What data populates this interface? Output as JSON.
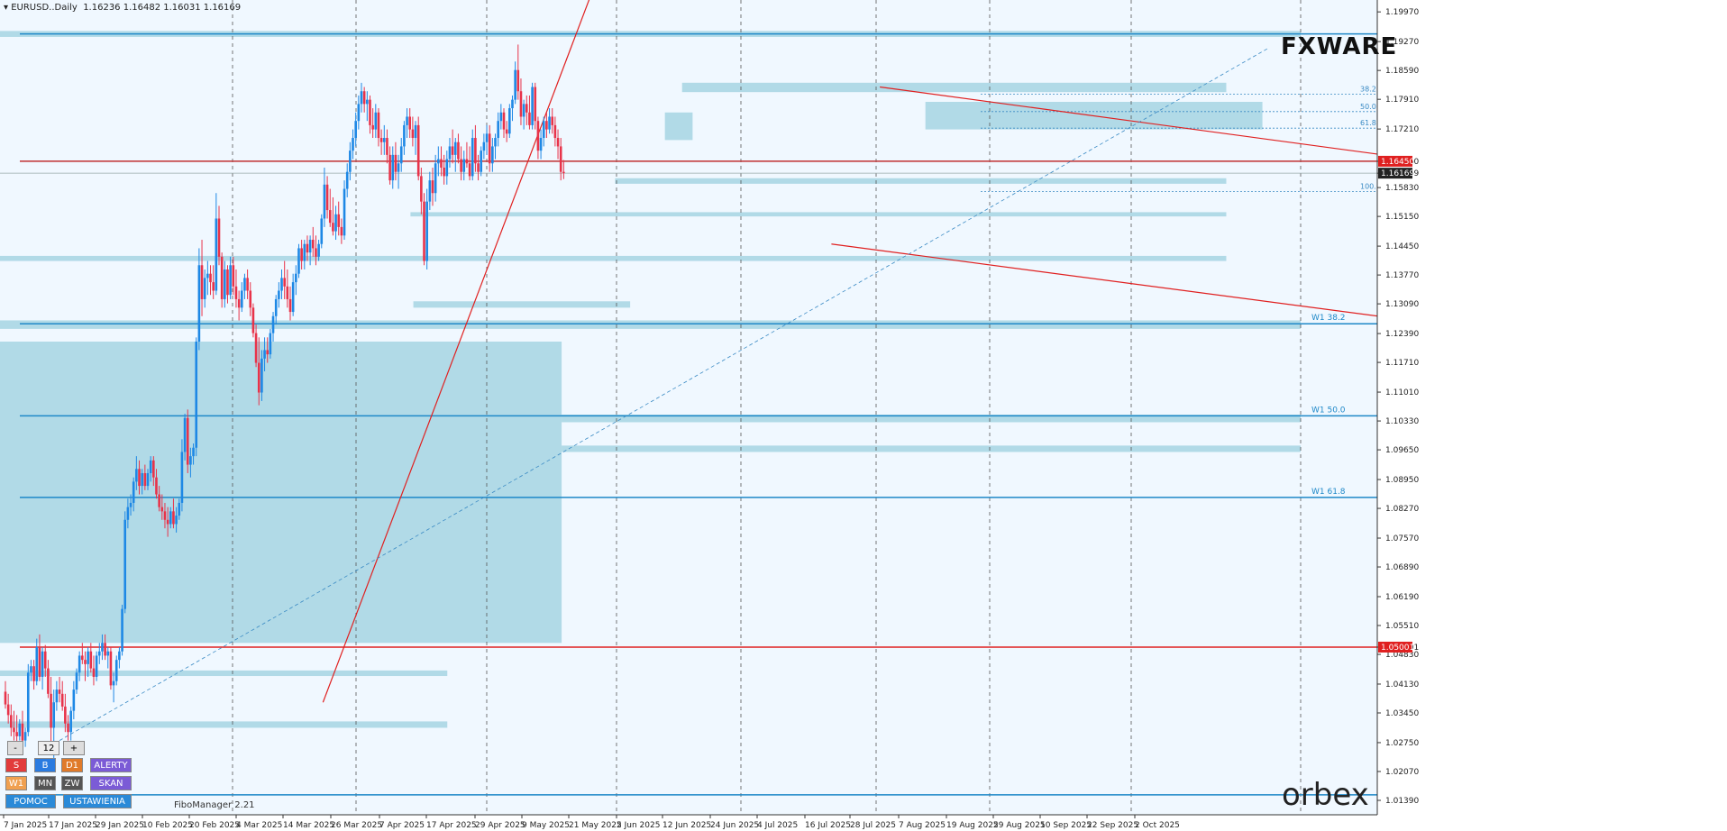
{
  "header": {
    "symbol": "EURUSD..Daily",
    "ohlc": "1.16236 1.16482 1.16031 1.16169"
  },
  "logos": {
    "top": "FXWARE",
    "bottom": "orbex"
  },
  "panel": {
    "minus": "-",
    "value": "12",
    "plus": "+",
    "row1": [
      "S",
      "B",
      "D1",
      "ALERTY"
    ],
    "row2": [
      "W1",
      "MN",
      "ZW",
      "SKAN"
    ],
    "row3": [
      "POMOC",
      "USTAWIENIA"
    ]
  },
  "footer": {
    "indicator": "FiboManager 2.21"
  },
  "colors": {
    "bg": "#f0f8ff",
    "bull": "#1e88e5",
    "bear": "#e8334a",
    "zone": "#add8e6",
    "trend": "#e02020",
    "level": "#1e88c8"
  },
  "chart_data": {
    "type": "candlestick",
    "ylim": [
      1.0105,
      1.2025
    ],
    "price_ticks": [
      "1.19970",
      "1.19270",
      "1.18590",
      "1.17910",
      "1.17210",
      "1.16450",
      "1.16169",
      "1.15830",
      "1.15150",
      "1.14450",
      "1.13770",
      "1.13090",
      "1.12390",
      "1.11710",
      "1.11010",
      "1.10330",
      "1.09650",
      "1.08950",
      "1.08270",
      "1.07570",
      "1.06890",
      "1.06190",
      "1.05510",
      "1.05001",
      "1.04830",
      "1.04130",
      "1.03450",
      "1.02750",
      "1.02070",
      "1.01390"
    ],
    "date_ticks": [
      "7 Jan 2025",
      "17 Jan 2025",
      "29 Jan 2025",
      "10 Feb 2025",
      "20 Feb 2025",
      "4 Mar 2025",
      "14 Mar 2025",
      "26 Mar 2025",
      "7 Apr 2025",
      "17 Apr 2025",
      "29 Apr 2025",
      "9 May 2025",
      "21 May 2025",
      "2 Jun 2025",
      "12 Jun 2025",
      "24 Jun 2025",
      "4 Jul 2025",
      "16 Jul 2025",
      "28 Jul 2025",
      "7 Aug 2025",
      "19 Aug 2025",
      "29 Aug 2025",
      "10 Sep 2025",
      "22 Sep 2025",
      "2 Oct 2025"
    ],
    "price_labels": [
      {
        "price": 1.1645,
        "text": "1.16450",
        "color": "#e02020"
      },
      {
        "price": 1.16169,
        "text": "1.16169",
        "color": "#222222"
      },
      {
        "price": 1.05001,
        "text": "1.05001",
        "color": "#e02020"
      }
    ],
    "hlines": [
      {
        "price": 1.1945,
        "color": "#1e88c8",
        "label": ""
      },
      {
        "price": 1.1262,
        "color": "#1e88c8",
        "label": "W1 38.2"
      },
      {
        "price": 1.1045,
        "color": "#1e88c8",
        "label": "W1 50.0"
      },
      {
        "price": 1.0853,
        "color": "#1e88c8",
        "label": "W1 61.8"
      },
      {
        "price": 1.0152,
        "color": "#1e88c8",
        "label": ""
      },
      {
        "price": 1.1645,
        "color": "#c03030",
        "label": ""
      },
      {
        "price": 1.05001,
        "color": "#e02020",
        "label": ""
      }
    ],
    "fib_levels": [
      {
        "price": 1.1803,
        "label": "38.2"
      },
      {
        "price": 1.1762,
        "label": "50.0"
      },
      {
        "price": 1.1723,
        "label": "61.8"
      },
      {
        "price": 1.1574,
        "label": "100.0"
      }
    ],
    "zones": [
      {
        "x0": 0.0,
        "x1": 1.0,
        "p0": 1.1952,
        "p1": 1.1938
      },
      {
        "x0": 0.0,
        "x1": 1.0,
        "p0": 1.127,
        "p1": 1.125
      },
      {
        "x0": 0.0,
        "x1": 0.4318,
        "p0": 1.122,
        "p1": 1.051
      },
      {
        "x0": 0.4318,
        "x1": 1.0,
        "p0": 1.1048,
        "p1": 1.103
      },
      {
        "x0": 0.4318,
        "x1": 1.0,
        "p0": 1.0975,
        "p1": 1.096
      },
      {
        "x0": 0.0,
        "x1": 0.3439,
        "p0": 1.0445,
        "p1": 1.0432
      },
      {
        "x0": 0.0,
        "x1": 0.3439,
        "p0": 1.0325,
        "p1": 1.031
      },
      {
        "x0": 0.5244,
        "x1": 0.9428,
        "p0": 1.183,
        "p1": 1.1808
      },
      {
        "x0": 0.5112,
        "x1": 0.5325,
        "p0": 1.176,
        "p1": 1.1695
      },
      {
        "x0": 0.7115,
        "x1": 0.9706,
        "p0": 1.1785,
        "p1": 1.172
      },
      {
        "x0": 0.4729,
        "x1": 0.9428,
        "p0": 1.1605,
        "p1": 1.1592
      },
      {
        "x0": 0.3156,
        "x1": 0.9428,
        "p0": 1.1525,
        "p1": 1.1515
      },
      {
        "x0": 0.0,
        "x1": 0.9428,
        "p0": 1.1422,
        "p1": 1.141
      },
      {
        "x0": 0.3178,
        "x1": 0.4845,
        "p0": 1.1315,
        "p1": 1.13
      }
    ],
    "candles": [
      [
        1.0395,
        1.042,
        1.0355,
        1.0365
      ],
      [
        1.0365,
        1.039,
        1.032,
        1.034
      ],
      [
        1.034,
        1.0365,
        1.029,
        1.031
      ],
      [
        1.031,
        1.035,
        1.028,
        1.03
      ],
      [
        1.03,
        1.034,
        1.027,
        1.029
      ],
      [
        1.029,
        1.033,
        1.028,
        1.032
      ],
      [
        1.032,
        1.035,
        1.027,
        1.028
      ],
      [
        1.028,
        1.031,
        1.0265,
        1.03
      ],
      [
        1.03,
        1.046,
        1.029,
        1.044
      ],
      [
        1.044,
        1.047,
        1.042,
        1.0455
      ],
      [
        1.0455,
        1.047,
        1.04,
        1.042
      ],
      [
        1.042,
        1.052,
        1.041,
        1.05
      ],
      [
        1.05,
        1.053,
        1.042,
        1.043
      ],
      [
        1.043,
        1.05,
        1.04,
        1.049
      ],
      [
        1.049,
        1.0505,
        1.043,
        1.045
      ],
      [
        1.045,
        1.047,
        1.038,
        1.039
      ],
      [
        1.039,
        1.043,
        1.025,
        1.031
      ],
      [
        1.031,
        1.04,
        1.023,
        1.037
      ],
      [
        1.037,
        1.042,
        1.035,
        1.04
      ],
      [
        1.04,
        1.043,
        1.037,
        1.039
      ],
      [
        1.039,
        1.042,
        1.035,
        1.036
      ],
      [
        1.036,
        1.039,
        1.03,
        1.032
      ],
      [
        1.032,
        1.034,
        1.028,
        1.03
      ],
      [
        1.03,
        1.036,
        1.028,
        1.035
      ],
      [
        1.035,
        1.042,
        1.033,
        1.04
      ],
      [
        1.04,
        1.045,
        1.039,
        1.044
      ],
      [
        1.044,
        1.049,
        1.042,
        1.048
      ],
      [
        1.048,
        1.051,
        1.046,
        1.047
      ],
      [
        1.047,
        1.049,
        1.042,
        1.046
      ],
      [
        1.046,
        1.05,
        1.043,
        1.049
      ],
      [
        1.049,
        1.051,
        1.044,
        1.045
      ],
      [
        1.045,
        1.048,
        1.041,
        1.043
      ],
      [
        1.043,
        1.049,
        1.042,
        1.048
      ],
      [
        1.048,
        1.051,
        1.046,
        1.049
      ],
      [
        1.049,
        1.053,
        1.047,
        1.051
      ],
      [
        1.051,
        1.053,
        1.047,
        1.048
      ],
      [
        1.048,
        1.05,
        1.045,
        1.049
      ],
      [
        1.049,
        1.05,
        1.04,
        1.041
      ],
      [
        1.041,
        1.044,
        1.037,
        1.042
      ],
      [
        1.042,
        1.048,
        1.041,
        1.047
      ],
      [
        1.047,
        1.05,
        1.045,
        1.049
      ],
      [
        1.049,
        1.06,
        1.048,
        1.059
      ],
      [
        1.059,
        1.082,
        1.058,
        1.08
      ],
      [
        1.08,
        1.085,
        1.078,
        1.083
      ],
      [
        1.083,
        1.086,
        1.081,
        1.084
      ],
      [
        1.084,
        1.09,
        1.082,
        1.089
      ],
      [
        1.089,
        1.095,
        1.087,
        1.092
      ],
      [
        1.092,
        1.094,
        1.086,
        1.088
      ],
      [
        1.088,
        1.092,
        1.086,
        1.091
      ],
      [
        1.091,
        1.093,
        1.087,
        1.088
      ],
      [
        1.088,
        1.092,
        1.087,
        1.091
      ],
      [
        1.091,
        1.095,
        1.089,
        1.094
      ],
      [
        1.094,
        1.095,
        1.088,
        1.09
      ],
      [
        1.09,
        1.092,
        1.085,
        1.086
      ],
      [
        1.086,
        1.088,
        1.082,
        1.083
      ],
      [
        1.083,
        1.086,
        1.08,
        1.082
      ],
      [
        1.082,
        1.084,
        1.078,
        1.08
      ],
      [
        1.08,
        1.083,
        1.076,
        1.079
      ],
      [
        1.079,
        1.083,
        1.078,
        1.082
      ],
      [
        1.082,
        1.085,
        1.078,
        1.079
      ],
      [
        1.079,
        1.083,
        1.077,
        1.081
      ],
      [
        1.081,
        1.085,
        1.08,
        1.084
      ],
      [
        1.084,
        1.099,
        1.082,
        1.096
      ],
      [
        1.096,
        1.105,
        1.094,
        1.104
      ],
      [
        1.104,
        1.106,
        1.091,
        1.093
      ],
      [
        1.093,
        1.097,
        1.09,
        1.095
      ],
      [
        1.095,
        1.098,
        1.093,
        1.097
      ],
      [
        1.097,
        1.123,
        1.095,
        1.122
      ],
      [
        1.122,
        1.144,
        1.12,
        1.14
      ],
      [
        1.14,
        1.146,
        1.128,
        1.132
      ],
      [
        1.132,
        1.139,
        1.13,
        1.137
      ],
      [
        1.137,
        1.141,
        1.133,
        1.138
      ],
      [
        1.138,
        1.14,
        1.133,
        1.136
      ],
      [
        1.136,
        1.14,
        1.132,
        1.134
      ],
      [
        1.134,
        1.157,
        1.133,
        1.151
      ],
      [
        1.151,
        1.154,
        1.14,
        1.142
      ],
      [
        1.142,
        1.143,
        1.13,
        1.132
      ],
      [
        1.132,
        1.141,
        1.13,
        1.139
      ],
      [
        1.139,
        1.14,
        1.131,
        1.133
      ],
      [
        1.133,
        1.142,
        1.132,
        1.14
      ],
      [
        1.14,
        1.142,
        1.133,
        1.135
      ],
      [
        1.135,
        1.139,
        1.13,
        1.132
      ],
      [
        1.132,
        1.134,
        1.127,
        1.13
      ],
      [
        1.13,
        1.136,
        1.129,
        1.134
      ],
      [
        1.134,
        1.138,
        1.132,
        1.137
      ],
      [
        1.137,
        1.139,
        1.132,
        1.134
      ],
      [
        1.134,
        1.136,
        1.128,
        1.13
      ],
      [
        1.13,
        1.131,
        1.123,
        1.124
      ],
      [
        1.124,
        1.126,
        1.116,
        1.117
      ],
      [
        1.117,
        1.123,
        1.107,
        1.11
      ],
      [
        1.11,
        1.12,
        1.108,
        1.118
      ],
      [
        1.118,
        1.123,
        1.115,
        1.12
      ],
      [
        1.12,
        1.123,
        1.117,
        1.119
      ],
      [
        1.119,
        1.125,
        1.118,
        1.124
      ],
      [
        1.124,
        1.129,
        1.122,
        1.128
      ],
      [
        1.128,
        1.133,
        1.126,
        1.132
      ],
      [
        1.132,
        1.136,
        1.13,
        1.134
      ],
      [
        1.134,
        1.139,
        1.132,
        1.137
      ],
      [
        1.137,
        1.141,
        1.132,
        1.135
      ],
      [
        1.135,
        1.139,
        1.13,
        1.132
      ],
      [
        1.132,
        1.135,
        1.127,
        1.129
      ],
      [
        1.129,
        1.138,
        1.128,
        1.136
      ],
      [
        1.136,
        1.14,
        1.133,
        1.138
      ],
      [
        1.138,
        1.145,
        1.137,
        1.144
      ],
      [
        1.144,
        1.146,
        1.139,
        1.141
      ],
      [
        1.141,
        1.146,
        1.139,
        1.145
      ],
      [
        1.145,
        1.147,
        1.141,
        1.143
      ],
      [
        1.143,
        1.147,
        1.14,
        1.146
      ],
      [
        1.146,
        1.149,
        1.142,
        1.144
      ],
      [
        1.144,
        1.147,
        1.14,
        1.142
      ],
      [
        1.142,
        1.146,
        1.141,
        1.145
      ],
      [
        1.145,
        1.152,
        1.144,
        1.151
      ],
      [
        1.151,
        1.163,
        1.149,
        1.159
      ],
      [
        1.159,
        1.161,
        1.151,
        1.153
      ],
      [
        1.153,
        1.158,
        1.149,
        1.15
      ],
      [
        1.15,
        1.156,
        1.147,
        1.148
      ],
      [
        1.148,
        1.154,
        1.146,
        1.152
      ],
      [
        1.152,
        1.155,
        1.147,
        1.149
      ],
      [
        1.149,
        1.151,
        1.145,
        1.147
      ],
      [
        1.147,
        1.16,
        1.146,
        1.158
      ],
      [
        1.158,
        1.164,
        1.156,
        1.162
      ],
      [
        1.162,
        1.169,
        1.16,
        1.167
      ],
      [
        1.167,
        1.172,
        1.165,
        1.17
      ],
      [
        1.17,
        1.176,
        1.168,
        1.174
      ],
      [
        1.174,
        1.18,
        1.172,
        1.178
      ],
      [
        1.178,
        1.183,
        1.176,
        1.181
      ],
      [
        1.181,
        1.182,
        1.176,
        1.178
      ],
      [
        1.178,
        1.181,
        1.174,
        1.179
      ],
      [
        1.179,
        1.18,
        1.171,
        1.173
      ],
      [
        1.173,
        1.177,
        1.17,
        1.172
      ],
      [
        1.172,
        1.178,
        1.17,
        1.176
      ],
      [
        1.176,
        1.177,
        1.168,
        1.17
      ],
      [
        1.17,
        1.172,
        1.166,
        1.169
      ],
      [
        1.169,
        1.173,
        1.166,
        1.17
      ],
      [
        1.17,
        1.172,
        1.164,
        1.166
      ],
      [
        1.166,
        1.168,
        1.159,
        1.16
      ],
      [
        1.16,
        1.168,
        1.158,
        1.166
      ],
      [
        1.166,
        1.169,
        1.16,
        1.162
      ],
      [
        1.162,
        1.166,
        1.158,
        1.164
      ],
      [
        1.164,
        1.17,
        1.162,
        1.168
      ],
      [
        1.168,
        1.174,
        1.166,
        1.173
      ],
      [
        1.173,
        1.177,
        1.17,
        1.175
      ],
      [
        1.175,
        1.177,
        1.17,
        1.172
      ],
      [
        1.172,
        1.175,
        1.168,
        1.17
      ],
      [
        1.17,
        1.174,
        1.166,
        1.173
      ],
      [
        1.173,
        1.175,
        1.16,
        1.161
      ],
      [
        1.161,
        1.163,
        1.152,
        1.155
      ],
      [
        1.155,
        1.157,
        1.14,
        1.141
      ],
      [
        1.141,
        1.158,
        1.139,
        1.155
      ],
      [
        1.155,
        1.162,
        1.153,
        1.16
      ],
      [
        1.16,
        1.163,
        1.154,
        1.157
      ],
      [
        1.157,
        1.166,
        1.155,
        1.164
      ],
      [
        1.164,
        1.168,
        1.161,
        1.165
      ],
      [
        1.165,
        1.168,
        1.161,
        1.163
      ],
      [
        1.163,
        1.166,
        1.159,
        1.161
      ],
      [
        1.161,
        1.167,
        1.159,
        1.165
      ],
      [
        1.165,
        1.17,
        1.163,
        1.168
      ],
      [
        1.168,
        1.172,
        1.164,
        1.166
      ],
      [
        1.166,
        1.17,
        1.162,
        1.169
      ],
      [
        1.169,
        1.171,
        1.164,
        1.165
      ],
      [
        1.165,
        1.168,
        1.16,
        1.162
      ],
      [
        1.162,
        1.167,
        1.16,
        1.165
      ],
      [
        1.165,
        1.169,
        1.163,
        1.164
      ],
      [
        1.164,
        1.168,
        1.16,
        1.161
      ],
      [
        1.161,
        1.172,
        1.16,
        1.17
      ],
      [
        1.17,
        1.173,
        1.162,
        1.164
      ],
      [
        1.164,
        1.166,
        1.16,
        1.162
      ],
      [
        1.162,
        1.168,
        1.161,
        1.167
      ],
      [
        1.167,
        1.171,
        1.165,
        1.169
      ],
      [
        1.169,
        1.173,
        1.166,
        1.171
      ],
      [
        1.171,
        1.173,
        1.162,
        1.164
      ],
      [
        1.164,
        1.17,
        1.162,
        1.168
      ],
      [
        1.168,
        1.171,
        1.165,
        1.17
      ],
      [
        1.17,
        1.176,
        1.168,
        1.174
      ],
      [
        1.174,
        1.178,
        1.172,
        1.176
      ],
      [
        1.176,
        1.177,
        1.17,
        1.172
      ],
      [
        1.172,
        1.174,
        1.169,
        1.171
      ],
      [
        1.171,
        1.178,
        1.17,
        1.177
      ],
      [
        1.177,
        1.18,
        1.174,
        1.179
      ],
      [
        1.179,
        1.188,
        1.178,
        1.186
      ],
      [
        1.186,
        1.192,
        1.179,
        1.181
      ],
      [
        1.181,
        1.184,
        1.173,
        1.175
      ],
      [
        1.175,
        1.179,
        1.172,
        1.178
      ],
      [
        1.178,
        1.18,
        1.173,
        1.176
      ],
      [
        1.176,
        1.18,
        1.172,
        1.173
      ],
      [
        1.173,
        1.183,
        1.172,
        1.182
      ],
      [
        1.182,
        1.183,
        1.172,
        1.174
      ],
      [
        1.174,
        1.175,
        1.165,
        1.167
      ],
      [
        1.167,
        1.172,
        1.165,
        1.17
      ],
      [
        1.17,
        1.175,
        1.168,
        1.174
      ],
      [
        1.174,
        1.176,
        1.17,
        1.172
      ],
      [
        1.172,
        1.177,
        1.171,
        1.175
      ],
      [
        1.175,
        1.177,
        1.171,
        1.173
      ],
      [
        1.173,
        1.175,
        1.168,
        1.17
      ],
      [
        1.17,
        1.172,
        1.165,
        1.168
      ],
      [
        1.168,
        1.17,
        1.16,
        1.162
      ],
      [
        1.162,
        1.1648,
        1.1603,
        1.1617
      ]
    ],
    "trendlines": [
      {
        "t0": 111.5,
        "p0": 1.037,
        "t1": 208,
        "p1": 1.208,
        "style": "solid"
      },
      {
        "t0": 307,
        "p0": 1.182,
        "t1": 561,
        "p1": 1.159,
        "style": "solid"
      },
      {
        "t0": 290,
        "p0": 1.145,
        "t1": 561,
        "p1": 1.121,
        "style": "solid"
      },
      {
        "t0": 19,
        "p0": 1.028,
        "t1": 443,
        "p1": 1.191,
        "style": "dashed"
      }
    ]
  }
}
